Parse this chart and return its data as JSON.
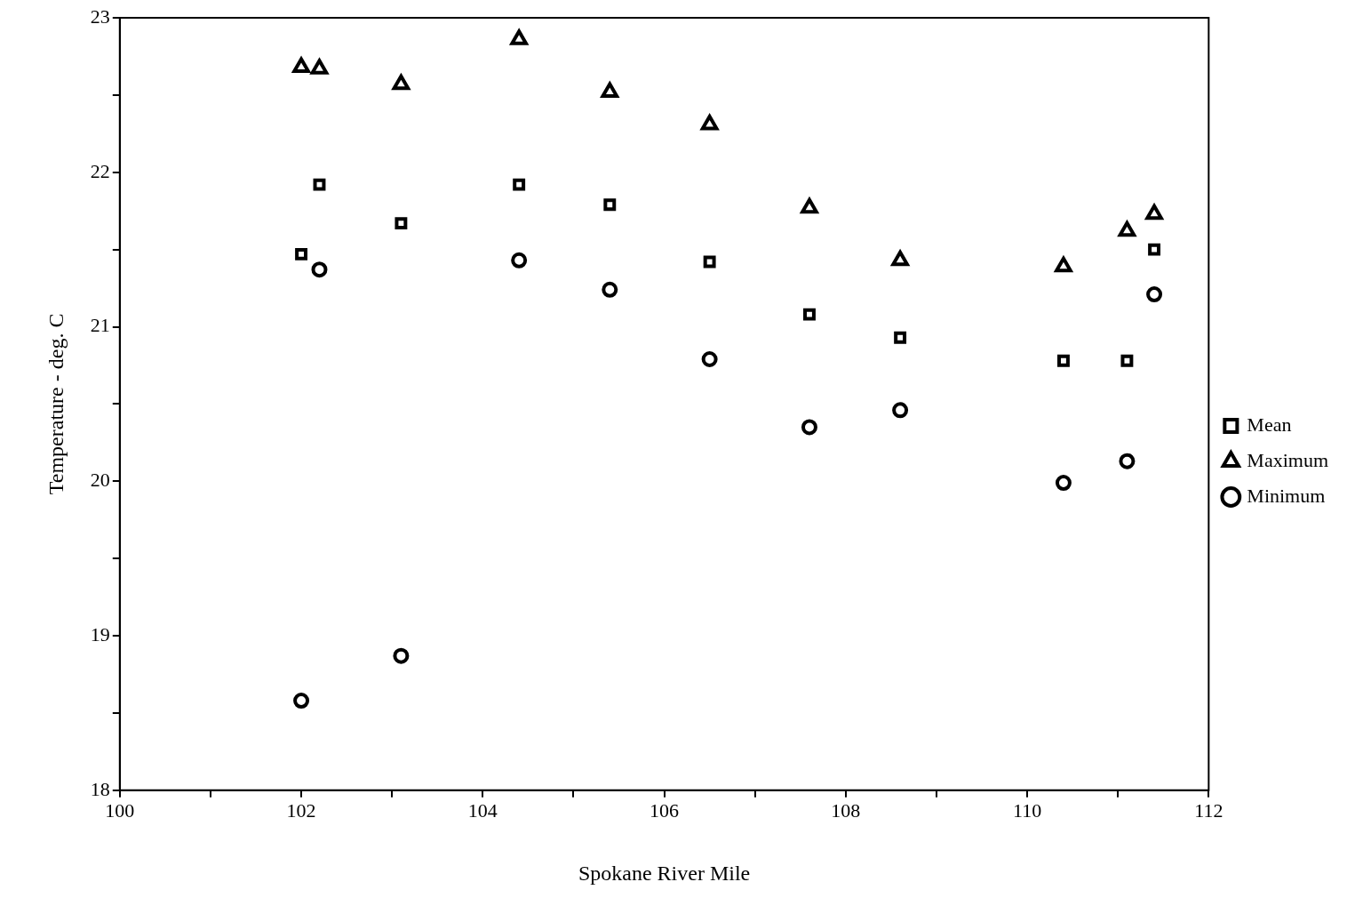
{
  "chart_data": {
    "type": "scatter",
    "xlabel": "Spokane River Mile",
    "ylabel": "Temperature - deg. C",
    "xlim": [
      100,
      112
    ],
    "xticks": [
      100,
      {
        "value": 101,
        "label": null
      },
      102,
      {
        "value": 103,
        "label": null
      },
      104,
      {
        "value": 105,
        "label": null
      },
      106,
      {
        "value": 107,
        "label": null
      },
      108,
      {
        "value": 109,
        "label": null
      },
      110,
      {
        "value": 111,
        "label": null
      },
      112
    ],
    "ylim": [
      18,
      23
    ],
    "yticks": [
      18,
      {
        "value": 18.5,
        "label": null
      },
      19,
      {
        "value": 19.5,
        "label": null
      },
      20,
      {
        "value": 20.5,
        "label": null
      },
      21,
      {
        "value": 21.5,
        "label": null
      },
      22,
      {
        "value": 22.5,
        "label": null
      },
      23
    ],
    "grid": false,
    "legend": "right",
    "x": [
      102.0,
      102.2,
      103.1,
      104.4,
      105.4,
      106.5,
      107.6,
      108.6,
      110.4,
      111.1,
      111.4
    ],
    "series": [
      {
        "name": "Mean",
        "color": "#000000",
        "marker": "square",
        "values": [
          21.47,
          21.92,
          21.67,
          21.92,
          21.79,
          21.42,
          21.08,
          20.93,
          20.78,
          20.78,
          21.5
        ]
      },
      {
        "name": "Maximum",
        "color": "#000000",
        "marker": "triangle",
        "values": [
          22.68,
          22.67,
          22.57,
          22.86,
          22.52,
          22.31,
          21.77,
          21.43,
          21.39,
          21.62,
          21.73
        ]
      },
      {
        "name": "Minimum",
        "color": "#000000",
        "marker": "circle",
        "values": [
          18.58,
          21.37,
          18.87,
          21.43,
          21.24,
          20.79,
          20.35,
          20.46,
          19.99,
          20.13,
          21.21
        ]
      }
    ]
  }
}
